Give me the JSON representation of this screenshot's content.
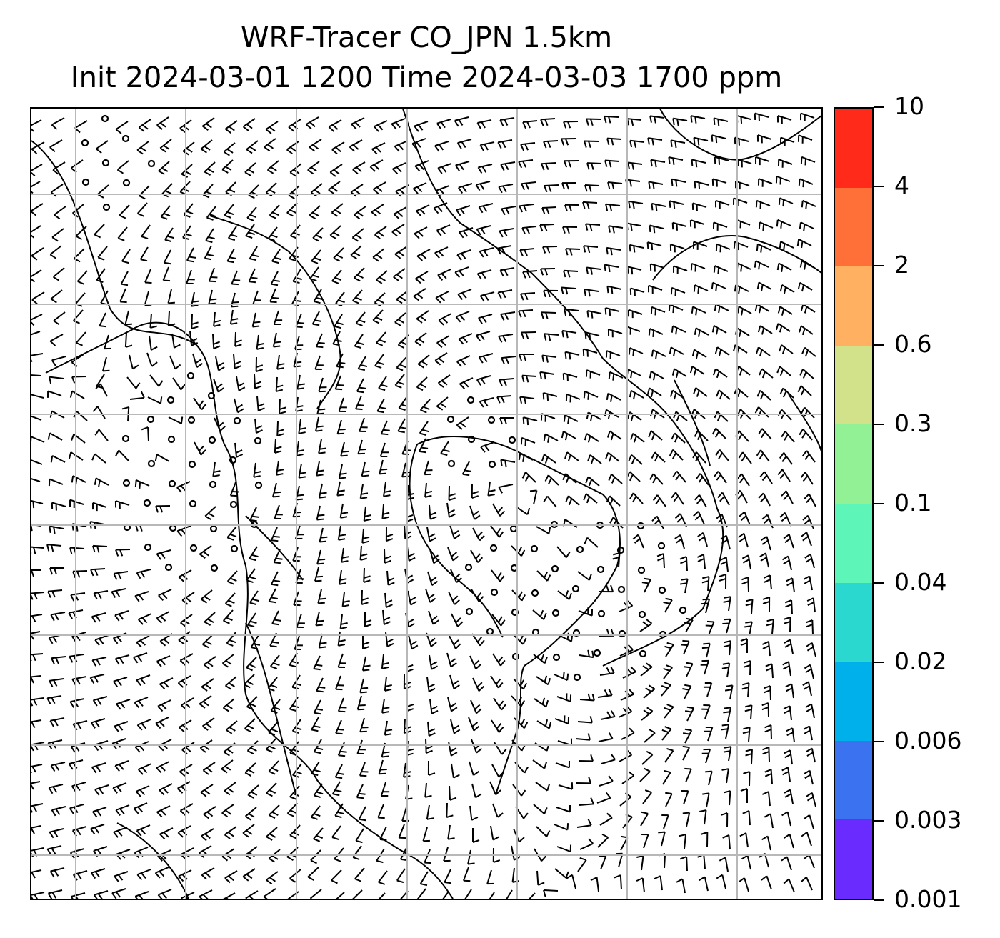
{
  "title": {
    "line1": "WRF-Tracer CO_JPN 1.5km",
    "line2": "Init 2024-03-01 1200 Time 2024-03-03 1700 ppm"
  },
  "colorbar": {
    "labels": [
      "0.001",
      "0.003",
      "0.006",
      "0.02",
      "0.04",
      "0.1",
      "0.3",
      "0.6",
      "2",
      "4",
      "10"
    ],
    "colors": [
      "#6a2bff",
      "#3a72f0",
      "#00b0ea",
      "#2ad8cf",
      "#5ef5b9",
      "#92f194",
      "#d2e28a",
      "#ffb060",
      "#ff7038",
      "#ff2a1a"
    ]
  },
  "map": {
    "gridline_color": "#b8b8b8",
    "coastline_color": "#000000",
    "layers": [
      "coastlines",
      "wind-barbs",
      "calm-circles",
      "gridlines"
    ]
  }
}
